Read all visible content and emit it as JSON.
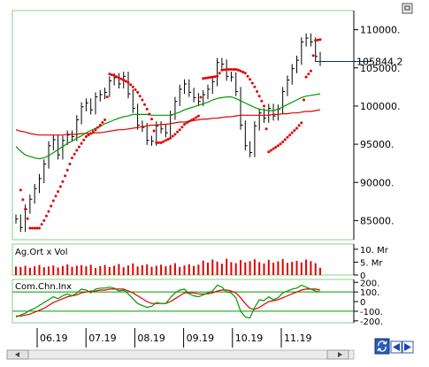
{
  "chart_data": [
    {
      "type": "candlestick",
      "title": "",
      "x_tick_labels": [
        "06.19",
        "07.19",
        "08.19",
        "09.19",
        "10.19",
        "11.19"
      ],
      "y_tick_labels": [
        "110000.",
        "105000.",
        "100000.",
        "95000.",
        "90000.",
        "85000."
      ],
      "y_ticks": [
        110000,
        105000,
        100000,
        95000,
        90000,
        85000
      ],
      "ylim": [
        82500,
        112500
      ],
      "last_price_label": "105844.2",
      "last_price": 105844.2,
      "grid": false,
      "colors": {
        "price": "#000000",
        "sar": "#e00000",
        "ma_short": "#009900",
        "ma_long": "#e00000"
      },
      "price": [
        85200,
        84100,
        86500,
        87800,
        89200,
        90500,
        92400,
        94800,
        95600,
        93600,
        95500,
        96200,
        96000,
        98200,
        99900,
        100400,
        99500,
        101200,
        101500,
        101800,
        103300,
        103700,
        102900,
        103900,
        101600,
        99700,
        97500,
        97200,
        95500,
        95400,
        97400,
        97000,
        96500,
        98800,
        100600,
        102200,
        102900,
        101800,
        101100,
        100600,
        101500,
        102200,
        103200,
        105700,
        105500,
        103900,
        103800,
        101900,
        97500,
        94800,
        93900,
        97400,
        99100,
        98400,
        99700,
        98700,
        99600,
        101900,
        103400,
        104900,
        106000,
        108400,
        108900,
        108400,
        106500,
        105844
      ],
      "sar": [
        null,
        89000,
        86500,
        84000,
        84000,
        84000,
        85000,
        86200,
        87600,
        88800,
        90100,
        91600,
        93200,
        94200,
        95100,
        96000,
        96400,
        96900,
        97500,
        98200,
        104200,
        104000,
        103700,
        103400,
        103100,
        102500,
        101800,
        100800,
        99600,
        98300,
        95200,
        95200,
        95500,
        95800,
        96300,
        96900,
        97600,
        98000,
        98300,
        98700,
        103600,
        103700,
        103800,
        103900,
        104700,
        104800,
        104800,
        104800,
        104600,
        104300,
        103500,
        102500,
        101300,
        100000,
        94000,
        94400,
        94800,
        95300,
        95900,
        96500,
        97100,
        97800,
        103800,
        104600,
        108600,
        108700
      ],
      "ma_short": [
        94700,
        94100,
        93600,
        93400,
        93200,
        93100,
        93200,
        93500,
        93900,
        94300,
        94700,
        95100,
        95400,
        95800,
        96100,
        96500,
        96800,
        97100,
        97300,
        97700,
        97900,
        98200,
        98400,
        98600,
        98700,
        98900,
        98900,
        98900,
        98900,
        98800,
        98800,
        98800,
        98800,
        98800,
        99000,
        99200,
        99500,
        99700,
        99900,
        100100,
        100300,
        100500,
        100800,
        101000,
        101100,
        101200,
        101200,
        101000,
        100700,
        100400,
        100100,
        99800,
        99600,
        99500,
        99400,
        99400,
        99600,
        99900,
        100200,
        100500,
        100800,
        101100,
        101300,
        101400,
        101500,
        101600
      ],
      "ma_long": [
        96900,
        96700,
        96600,
        96400,
        96300,
        96200,
        96200,
        96200,
        96200,
        96200,
        96200,
        96300,
        96300,
        96300,
        96400,
        96400,
        96400,
        96500,
        96500,
        96600,
        96700,
        96800,
        96900,
        96900,
        97000,
        97100,
        97200,
        97300,
        97400,
        97500,
        97500,
        97600,
        97600,
        97700,
        97800,
        97900,
        97900,
        98000,
        98100,
        98200,
        98300,
        98300,
        98400,
        98400,
        98500,
        98600,
        98600,
        98700,
        98800,
        98800,
        98800,
        98800,
        98800,
        98800,
        98800,
        98900,
        98900,
        99000,
        99000,
        99100,
        99100,
        99200,
        99300,
        99300,
        99400,
        99500
      ]
    },
    {
      "type": "bar",
      "title": "Ag.Ort x Vol",
      "y_tick_labels": [
        "10. Mr",
        "5. Mr",
        "0"
      ],
      "y_ticks": [
        10,
        5,
        0
      ],
      "ylim": [
        0,
        12
      ],
      "colors": {
        "bars": "#e00000"
      },
      "values": [
        3.3,
        3.1,
        3.6,
        2.8,
        3.4,
        3.9,
        3.0,
        3.3,
        3.7,
        2.9,
        3.5,
        4.1,
        3.2,
        3.6,
        3.8,
        3.4,
        4.0,
        2.7,
        3.5,
        3.9,
        3.1,
        3.6,
        4.3,
        3.0,
        3.7,
        4.5,
        3.3,
        3.8,
        4.1,
        3.2,
        3.6,
        4.0,
        3.4,
        3.9,
        4.6,
        3.1,
        3.7,
        4.2,
        3.5,
        4.0,
        5.6,
        4.8,
        6.0,
        5.2,
        4.4,
        6.3,
        5.0,
        4.6,
        5.8,
        4.9,
        5.4,
        6.1,
        5.0,
        4.5,
        5.9,
        4.8,
        5.3,
        6.2,
        4.7,
        5.1,
        5.5,
        4.9,
        6.0,
        5.4,
        4.6,
        2.8
      ]
    },
    {
      "type": "line",
      "title": "Com.Chn.Inx",
      "y_tick_labels": [
        "200.",
        "100.",
        "0",
        "-100.",
        "-200."
      ],
      "y_ticks": [
        200,
        100,
        0,
        -100,
        -200
      ],
      "ylim": [
        -220,
        230
      ],
      "reference_lines": [
        100,
        -100
      ],
      "colors": {
        "fast": "#009900",
        "slow": "#e00000",
        "reference": "#009900"
      },
      "fast": [
        -160,
        -140,
        -120,
        -90,
        -70,
        -40,
        -10,
        20,
        50,
        30,
        60,
        80,
        60,
        90,
        130,
        120,
        90,
        130,
        140,
        140,
        150,
        140,
        110,
        120,
        80,
        30,
        -20,
        -40,
        -60,
        -50,
        -10,
        -20,
        -20,
        40,
        90,
        120,
        130,
        80,
        60,
        50,
        70,
        90,
        110,
        170,
        150,
        100,
        90,
        40,
        -100,
        -160,
        -170,
        -60,
        20,
        10,
        50,
        20,
        40,
        90,
        110,
        130,
        140,
        170,
        150,
        130,
        110,
        100
      ],
      "slow": [
        -150,
        -150,
        -140,
        -130,
        -110,
        -90,
        -70,
        -40,
        -10,
        10,
        30,
        50,
        60,
        70,
        90,
        100,
        110,
        110,
        120,
        120,
        130,
        130,
        130,
        130,
        110,
        90,
        60,
        30,
        0,
        -20,
        -20,
        -20,
        -20,
        0,
        30,
        60,
        90,
        90,
        90,
        80,
        80,
        80,
        90,
        110,
        120,
        120,
        110,
        90,
        40,
        -20,
        -70,
        -80,
        -60,
        -30,
        0,
        10,
        20,
        40,
        60,
        80,
        100,
        120,
        130,
        130,
        130,
        120
      ]
    }
  ]
}
